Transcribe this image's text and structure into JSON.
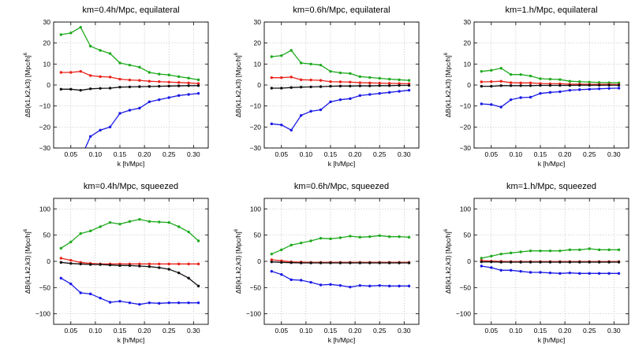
{
  "colors": {
    "green": "#1faa1f",
    "red": "#e8231b",
    "black": "#111111",
    "blue": "#1a1ae6",
    "grid": "#b8b8b8"
  },
  "chart_data": [
    {
      "type": "line",
      "title": "km=0.4h/Mpc, equilateral",
      "xlabel": "k [h/Mpc]",
      "ylabel": "ΔB(k1,k2,k3) [Mpc/h]",
      "ylabel_sup": "6",
      "xlim": [
        0.015,
        0.33
      ],
      "ylim": [
        -30,
        30
      ],
      "xticks": [
        "0.05",
        "0.10",
        "0.15",
        "0.20",
        "0.25",
        "0.30"
      ],
      "yticks": [
        "−30",
        "−20",
        "−10",
        "0",
        "10",
        "20",
        "30"
      ],
      "grid": true,
      "x": [
        0.03,
        0.05,
        0.07,
        0.09,
        0.11,
        0.13,
        0.15,
        0.17,
        0.19,
        0.21,
        0.23,
        0.25,
        0.27,
        0.29,
        0.31
      ],
      "series": [
        {
          "color": "green",
          "values": [
            24,
            24.8,
            27.5,
            18.5,
            16.5,
            15,
            10.5,
            9.5,
            8.5,
            6,
            5.2,
            4.8,
            4,
            3.3,
            2.5
          ]
        },
        {
          "color": "red",
          "values": [
            6,
            6,
            6.5,
            4.5,
            4,
            3.8,
            2.8,
            2.4,
            2.2,
            1.8,
            1.6,
            1.4,
            1.2,
            1.0,
            0.7
          ]
        },
        {
          "color": "black",
          "values": [
            -2,
            -2,
            -2.5,
            -1.8,
            -1.6,
            -1.5,
            -1,
            -0.9,
            -0.8,
            -0.7,
            -0.6,
            -0.5,
            -0.4,
            -0.3,
            -0.3
          ]
        },
        {
          "color": "blue",
          "values": [
            -33,
            -33.5,
            -35,
            -24.5,
            -21.5,
            -20,
            -13.5,
            -12,
            -11,
            -8,
            -7,
            -6,
            -5,
            -4.5,
            -4
          ]
        }
      ]
    },
    {
      "type": "line",
      "title": "km=0.6h/Mpc, equilateral",
      "xlabel": "k [h/Mpc]",
      "ylabel": "ΔB(k1,k2,k3) [Mpc/h]",
      "ylabel_sup": "6",
      "xlim": [
        0.015,
        0.33
      ],
      "ylim": [
        -30,
        30
      ],
      "xticks": [
        "0.05",
        "0.10",
        "0.15",
        "0.20",
        "0.25",
        "0.30"
      ],
      "yticks": [
        "−30",
        "−20",
        "−10",
        "0",
        "10",
        "20",
        "30"
      ],
      "grid": true,
      "x": [
        0.03,
        0.05,
        0.07,
        0.09,
        0.11,
        0.13,
        0.15,
        0.17,
        0.19,
        0.21,
        0.23,
        0.25,
        0.27,
        0.29,
        0.31
      ],
      "series": [
        {
          "color": "green",
          "values": [
            13.5,
            14,
            16.5,
            10.5,
            10,
            9.5,
            6.5,
            5.8,
            5.5,
            4,
            3.6,
            3.2,
            2.8,
            2.5,
            2.2
          ]
        },
        {
          "color": "red",
          "values": [
            3.5,
            3.5,
            3.8,
            2.5,
            2.4,
            2.2,
            1.6,
            1.5,
            1.4,
            1.1,
            1.0,
            0.9,
            0.8,
            0.7,
            0.6
          ]
        },
        {
          "color": "black",
          "values": [
            -1.5,
            -1.5,
            -1.2,
            -1,
            -0.9,
            -0.8,
            -0.6,
            -0.5,
            -0.5,
            -0.4,
            -0.4,
            -0.3,
            -0.3,
            -0.2,
            -0.2
          ]
        },
        {
          "color": "blue",
          "values": [
            -18.5,
            -19,
            -21.5,
            -14.5,
            -12.5,
            -11.8,
            -8,
            -7,
            -6.5,
            -5,
            -4.5,
            -4,
            -3.5,
            -3,
            -2.5
          ]
        }
      ]
    },
    {
      "type": "line",
      "title": "km=1.h/Mpc, equilateral",
      "xlabel": "k [h/Mpc]",
      "ylabel": "ΔB(k1,k2,k3) [Mpc/h]",
      "ylabel_sup": "6",
      "xlim": [
        0.015,
        0.33
      ],
      "ylim": [
        -30,
        30
      ],
      "xticks": [
        "0.05",
        "0.10",
        "0.15",
        "0.20",
        "0.25",
        "0.30"
      ],
      "yticks": [
        "−30",
        "−20",
        "−10",
        "0",
        "10",
        "20",
        "30"
      ],
      "grid": true,
      "x": [
        0.03,
        0.05,
        0.07,
        0.09,
        0.11,
        0.13,
        0.15,
        0.17,
        0.19,
        0.21,
        0.23,
        0.25,
        0.27,
        0.29,
        0.31
      ],
      "series": [
        {
          "color": "green",
          "values": [
            6.5,
            7,
            8,
            5,
            5,
            4.3,
            3,
            2.8,
            2.6,
            1.8,
            1.6,
            1.4,
            1.2,
            1.1,
            1.0
          ]
        },
        {
          "color": "red",
          "values": [
            1.5,
            1.6,
            1.8,
            1.1,
            1.0,
            1.0,
            0.7,
            0.6,
            0.6,
            0.4,
            0.4,
            0.3,
            0.3,
            0.3,
            0.2
          ]
        },
        {
          "color": "black",
          "values": [
            -0.6,
            -0.6,
            -0.3,
            -0.3,
            -0.3,
            -0.3,
            -0.2,
            -0.2,
            -0.2,
            -0.2,
            -0.1,
            -0.1,
            -0.1,
            -0.1,
            -0.1
          ]
        },
        {
          "color": "blue",
          "values": [
            -9,
            -9.3,
            -10.5,
            -7,
            -6,
            -5.8,
            -4,
            -3.5,
            -3.2,
            -2.5,
            -2.2,
            -2,
            -1.8,
            -1.6,
            -1.5
          ]
        }
      ]
    },
    {
      "type": "line",
      "title": "km=0.4h/Mpc, squeezed",
      "xlabel": "k [h/Mpc]",
      "ylabel": "ΔB(k1,k2,k3) [Mpc/h]",
      "ylabel_sup": "6",
      "xlim": [
        0.015,
        0.33
      ],
      "ylim": [
        -120,
        120
      ],
      "xticks": [
        "0.05",
        "0.10",
        "0.15",
        "0.20",
        "0.25",
        "0.30"
      ],
      "yticks": [
        "−100",
        "−50",
        "0",
        "50",
        "100"
      ],
      "grid": true,
      "x": [
        0.03,
        0.05,
        0.07,
        0.09,
        0.11,
        0.13,
        0.15,
        0.17,
        0.19,
        0.21,
        0.23,
        0.25,
        0.27,
        0.29,
        0.31
      ],
      "series": [
        {
          "color": "green",
          "values": [
            25,
            37,
            53,
            58,
            66,
            74,
            71,
            76,
            80,
            76,
            75,
            74,
            66,
            56,
            39
          ]
        },
        {
          "color": "red",
          "values": [
            6,
            2,
            -2,
            -4,
            -5,
            -5,
            -5,
            -5,
            -5,
            -5,
            -5,
            -5,
            -5,
            -5,
            -5
          ]
        },
        {
          "color": "black",
          "values": [
            -2,
            -4,
            -5,
            -6,
            -6,
            -7,
            -8,
            -8,
            -9,
            -10,
            -12,
            -15,
            -22,
            -32,
            -47
          ]
        },
        {
          "color": "blue",
          "values": [
            -32,
            -43,
            -60,
            -62,
            -70,
            -78,
            -76,
            -79,
            -82,
            -79,
            -80,
            -79,
            -79,
            -79,
            -79
          ]
        }
      ]
    },
    {
      "type": "line",
      "title": "km=0.6h/Mpc, squeezed",
      "xlabel": "k [h/Mpc]",
      "ylabel": "ΔB(k1,k2,k3) [Mpc/h]",
      "ylabel_sup": "6",
      "xlim": [
        0.015,
        0.33
      ],
      "ylim": [
        -120,
        120
      ],
      "xticks": [
        "0.05",
        "0.10",
        "0.15",
        "0.20",
        "0.25",
        "0.30"
      ],
      "yticks": [
        "−100",
        "−50",
        "0",
        "50",
        "100"
      ],
      "grid": true,
      "x": [
        0.03,
        0.05,
        0.07,
        0.09,
        0.11,
        0.13,
        0.15,
        0.17,
        0.19,
        0.21,
        0.23,
        0.25,
        0.27,
        0.29,
        0.31
      ],
      "series": [
        {
          "color": "green",
          "values": [
            14,
            22,
            31,
            35,
            39,
            44,
            43,
            45,
            48,
            46,
            47,
            49,
            47,
            47,
            46
          ]
        },
        {
          "color": "red",
          "values": [
            3,
            1,
            -1,
            -1.5,
            -2,
            -2,
            -2,
            -2,
            -2,
            -2,
            -2,
            -2,
            -2,
            -2,
            -2
          ]
        },
        {
          "color": "black",
          "values": [
            -1,
            -2,
            -2.5,
            -3,
            -3,
            -3,
            -3,
            -3,
            -3,
            -3,
            -3,
            -3,
            -3,
            -3,
            -3
          ]
        },
        {
          "color": "blue",
          "values": [
            -19,
            -25,
            -35,
            -36,
            -40,
            -45,
            -44,
            -46,
            -49,
            -46,
            -47,
            -46,
            -47,
            -47,
            -47
          ]
        }
      ]
    },
    {
      "type": "line",
      "title": "km=1.h/Mpc, squeezed",
      "xlabel": "k [h/Mpc]",
      "ylabel": "ΔB(k1,k2,k3) [Mpc/h]",
      "ylabel_sup": "6",
      "xlim": [
        0.015,
        0.33
      ],
      "ylim": [
        -120,
        120
      ],
      "xticks": [
        "0.05",
        "0.10",
        "0.15",
        "0.20",
        "0.25",
        "0.30"
      ],
      "yticks": [
        "−100",
        "−50",
        "0",
        "50",
        "100"
      ],
      "grid": true,
      "x": [
        0.03,
        0.05,
        0.07,
        0.09,
        0.11,
        0.13,
        0.15,
        0.17,
        0.19,
        0.21,
        0.23,
        0.25,
        0.27,
        0.29,
        0.31
      ],
      "series": [
        {
          "color": "green",
          "values": [
            6,
            10,
            14,
            16,
            18,
            20,
            20,
            20,
            20,
            22,
            22,
            24,
            22,
            22,
            22
          ]
        },
        {
          "color": "red",
          "values": [
            1.5,
            0.5,
            0,
            -0.5,
            -0.5,
            -0.5,
            -0.5,
            -0.5,
            -0.5,
            -0.5,
            -0.5,
            -0.5,
            -0.5,
            -0.5,
            -0.5
          ]
        },
        {
          "color": "black",
          "values": [
            -1,
            -1,
            -1.5,
            -1.5,
            -1.5,
            -1.5,
            -1.5,
            -1.5,
            -1.5,
            -1.5,
            -1.5,
            -1.5,
            -1.5,
            -1.5,
            -1.5
          ]
        },
        {
          "color": "blue",
          "values": [
            -9,
            -12,
            -17,
            -17,
            -19,
            -21,
            -21,
            -22,
            -23,
            -22,
            -23,
            -23,
            -23,
            -23,
            -23
          ]
        }
      ]
    }
  ]
}
